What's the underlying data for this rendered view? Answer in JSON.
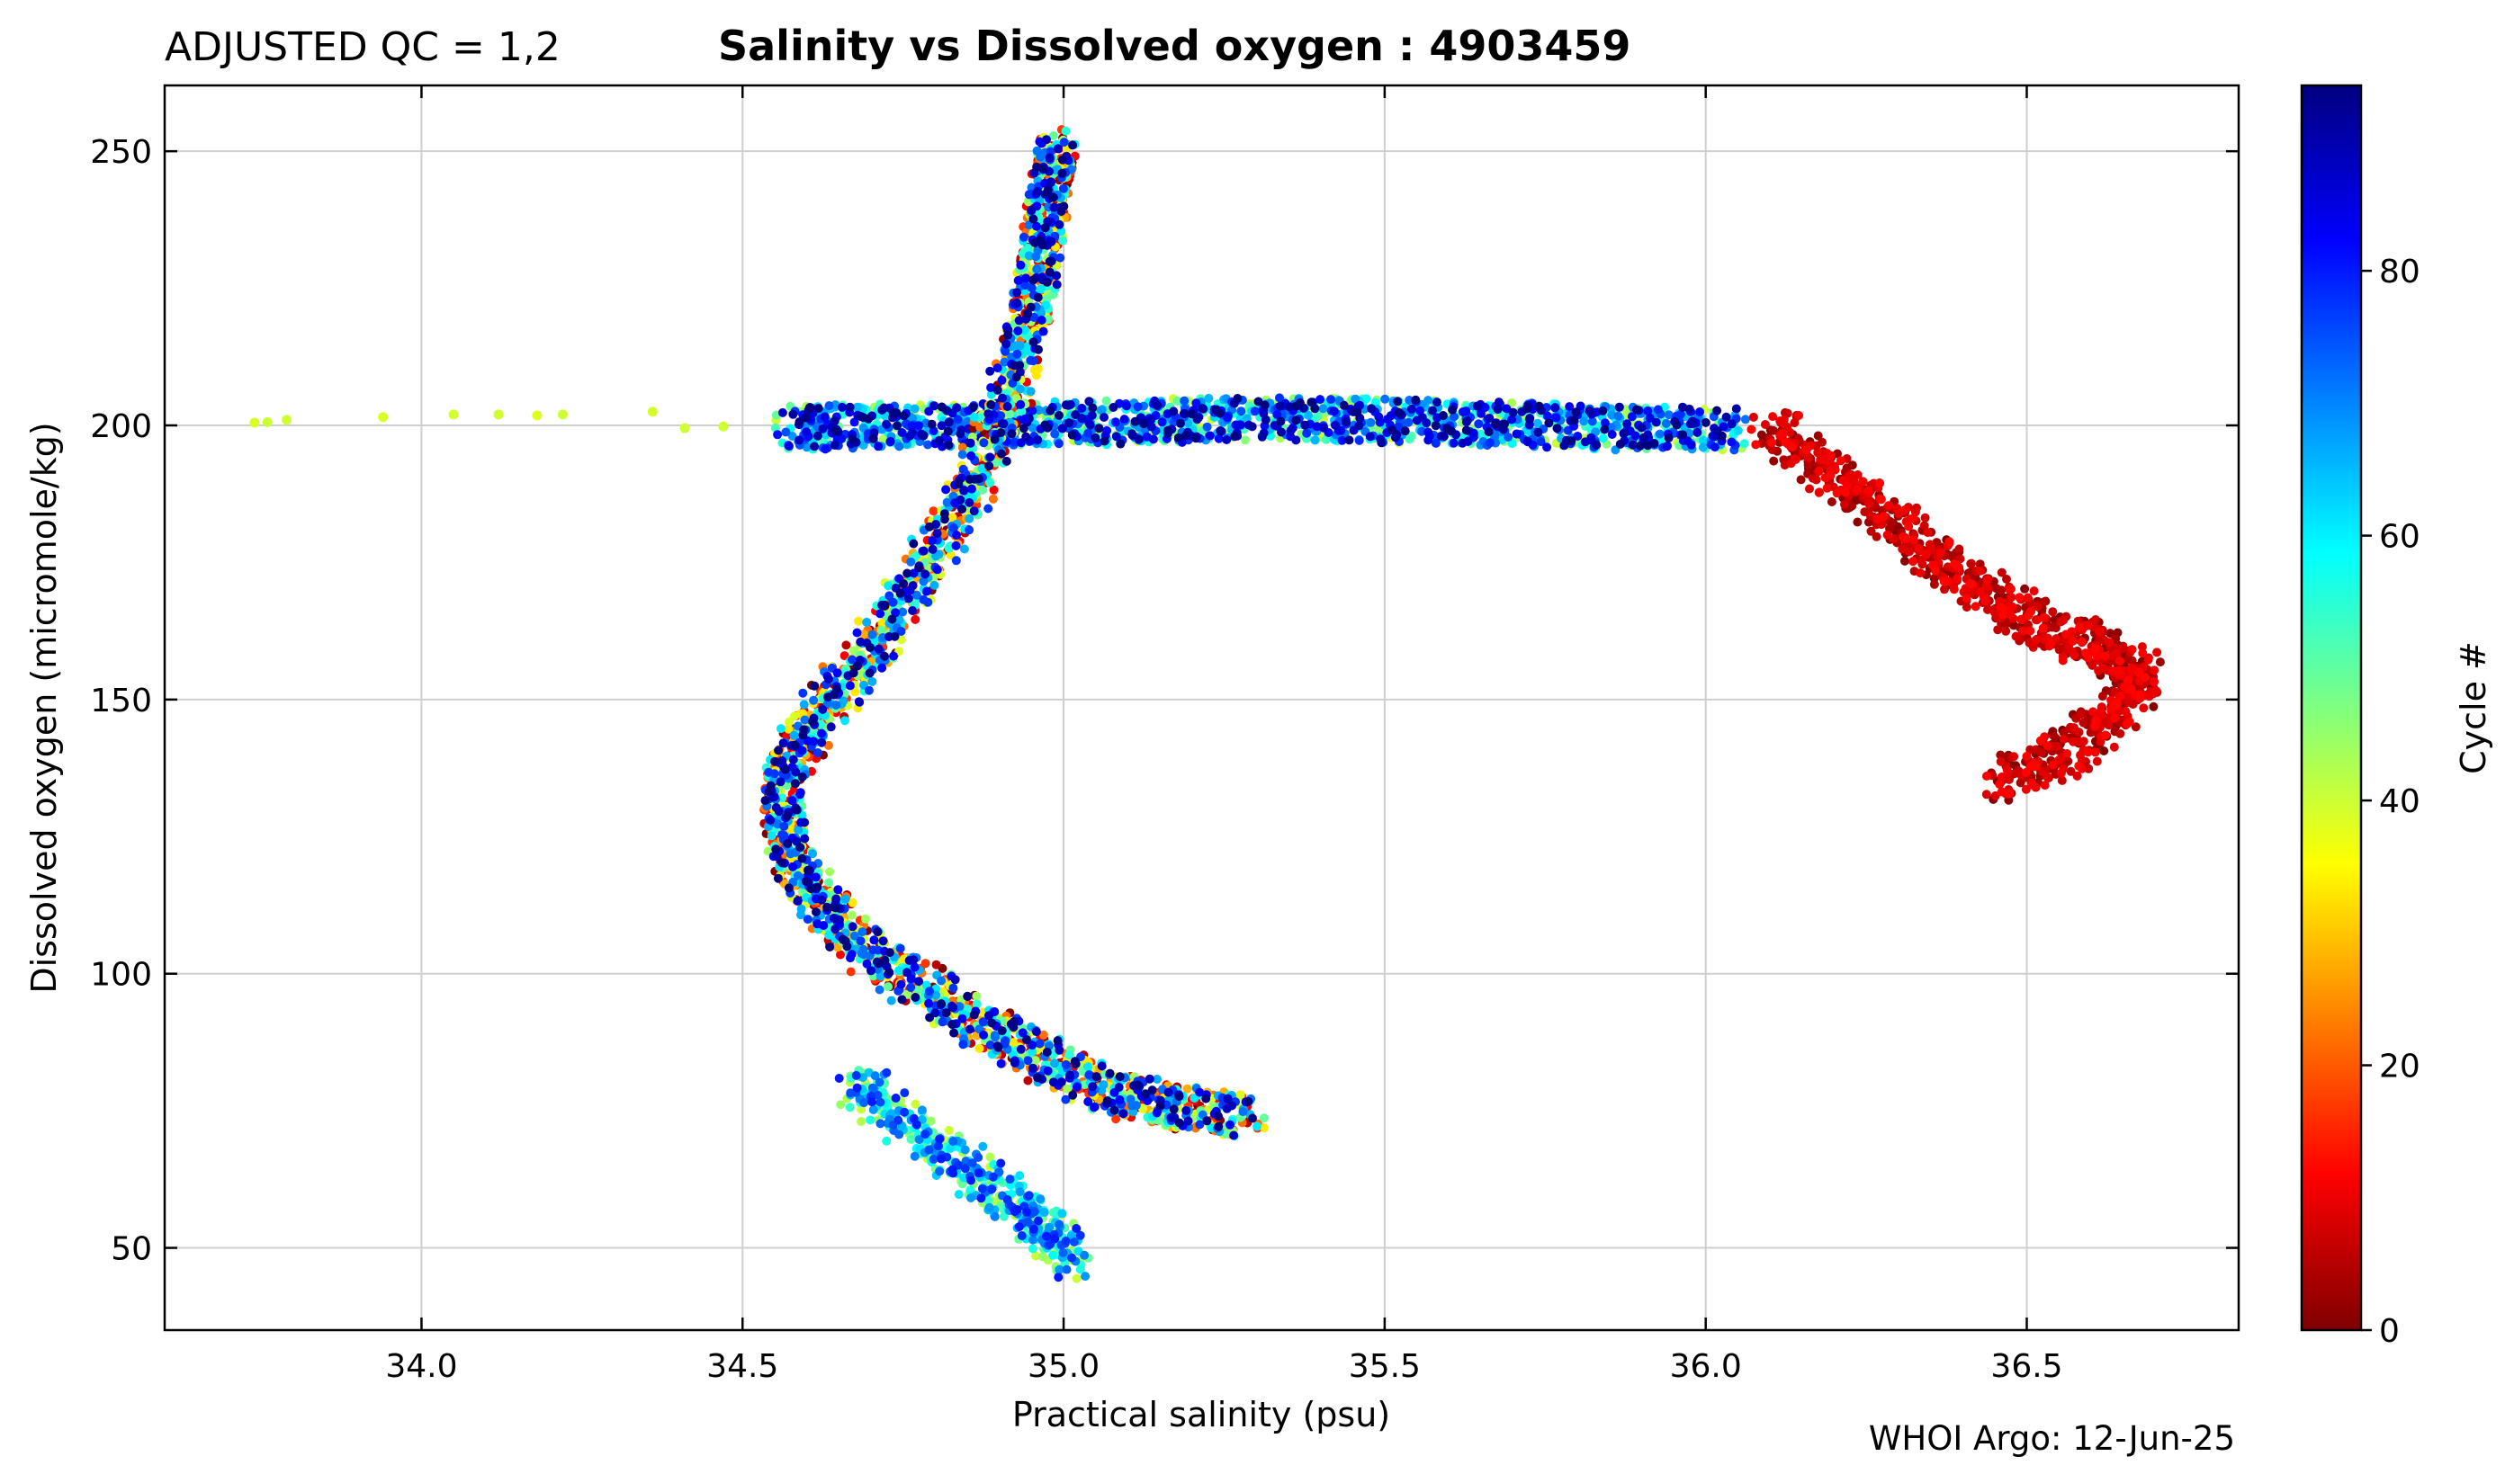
{
  "header": {
    "qc_label": "ADJUSTED QC = 1,2",
    "title": "Salinity vs Dissolved oxygen : 4903459"
  },
  "footer": {
    "credit": "WHOI Argo: 12-Jun-25"
  },
  "colorbar": {
    "label": "Cycle #",
    "colormap": "jet-reversed",
    "range": [
      0,
      94
    ],
    "ticks": [
      0,
      20,
      40,
      60,
      80
    ],
    "tick_labels": [
      "0",
      "20",
      "40",
      "60",
      "80"
    ],
    "colors": [
      "#800000",
      "#ff0000",
      "#ff8000",
      "#ffff00",
      "#80ff80",
      "#00ffff",
      "#0080ff",
      "#0000ff",
      "#000080"
    ]
  },
  "chart_data": {
    "type": "scatter",
    "title": "Salinity vs Dissolved oxygen : 4903459",
    "xlabel": "Practical salinity  (psu)",
    "ylabel": "Dissolved oxygen  (micromole/kg)",
    "xlim": [
      33.6,
      36.83
    ],
    "ylim": [
      35,
      262
    ],
    "x_ticks": [
      34.0,
      34.5,
      35.0,
      35.5,
      36.0,
      36.5
    ],
    "x_tick_labels": [
      "34.0",
      "34.5",
      "35.0",
      "35.5",
      "36.0",
      "36.5"
    ],
    "y_ticks": [
      50,
      100,
      150,
      200,
      250
    ],
    "y_tick_labels": [
      "50",
      "100",
      "150",
      "200",
      "250"
    ],
    "grid": true,
    "color_by": "cycle",
    "series": [
      {
        "description": "near-surface saltier stretch at ~200",
        "cycle_range": [
          40,
          94
        ],
        "x": [
          34.58,
          34.65,
          34.75,
          34.85,
          34.95,
          35.05,
          35.15,
          35.25,
          35.35,
          35.45,
          35.55,
          35.65,
          35.75,
          35.85,
          35.95,
          36.05
        ],
        "y": [
          199.5,
          199.8,
          200.0,
          200.0,
          200.3,
          200.5,
          200.8,
          201.0,
          201.2,
          201.0,
          200.6,
          200.3,
          200.0,
          199.5,
          199.5,
          199.0
        ]
      },
      {
        "description": "fresh surface outliers",
        "cycle_range": [
          38,
          40
        ],
        "x": [
          33.74,
          33.76,
          33.79,
          33.94,
          34.05,
          34.12,
          34.18,
          34.22,
          34.36,
          34.41,
          34.47
        ],
        "y": [
          200.5,
          200.6,
          201.0,
          201.5,
          202.0,
          202.0,
          201.8,
          202.0,
          202.5,
          199.5,
          199.8
        ]
      },
      {
        "description": "thermocline descent into the oxygen minimum",
        "cycle_range": [
          0,
          94
        ],
        "x": [
          34.99,
          34.98,
          34.97,
          34.96,
          34.94,
          34.91,
          34.87,
          34.82,
          34.76,
          34.7,
          34.63,
          34.58,
          34.56,
          34.57,
          34.6,
          34.65,
          34.72,
          34.8,
          34.88,
          34.96,
          35.04,
          35.12,
          35.2,
          35.3
        ],
        "y": [
          250,
          244,
          236,
          226,
          216,
          204,
          192,
          181,
          170,
          159,
          149,
          140,
          132,
          124,
          116,
          109,
          102,
          96,
          90,
          85,
          80,
          77,
          75,
          74
        ]
      },
      {
        "description": "early-cycle high-salinity layer",
        "cycle_range": [
          0,
          12
        ],
        "x": [
          36.1,
          36.2,
          36.3,
          36.4,
          36.5,
          36.6,
          36.68,
          36.65,
          36.55,
          36.45
        ],
        "y": [
          200,
          190,
          182,
          172,
          165,
          160,
          155,
          148,
          140,
          134
        ]
      },
      {
        "description": "deep oxygen minimum layer",
        "cycle_range": [
          40,
          80
        ],
        "x": [
          34.68,
          34.78,
          34.88,
          34.96,
          35.02
        ],
        "y": [
          80,
          70,
          62,
          55,
          47
        ]
      }
    ]
  }
}
